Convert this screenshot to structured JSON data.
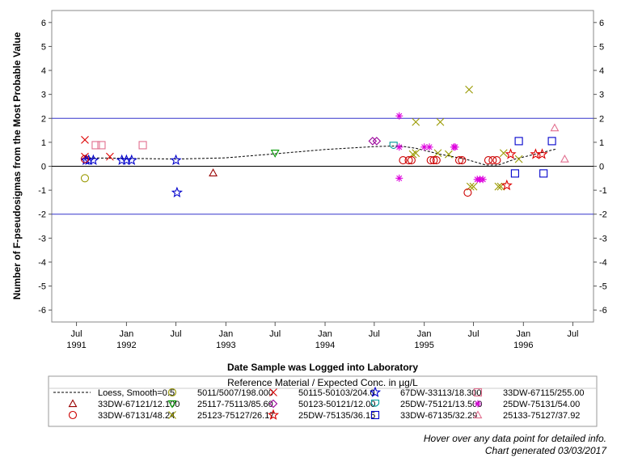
{
  "chart_data": {
    "type": "scatter",
    "ylabel": "Number of F-pseudosigmas from the Most Probable Value",
    "xlabel": "Date Sample was Logged into Laboratory",
    "ylim": [
      -6.5,
      6.5
    ],
    "y_ticks": [
      -6,
      -5,
      -4,
      -3,
      -2,
      -1,
      0,
      1,
      2,
      3,
      4,
      5,
      6
    ],
    "xlim": [
      "1991-04-01",
      "1996-09-15"
    ],
    "x_ticks": [
      {
        "date": "1991-07-01",
        "line1": "Jul",
        "line2": "1991"
      },
      {
        "date": "1992-01-01",
        "line1": "Jan",
        "line2": "1992"
      },
      {
        "date": "1992-07-01",
        "line1": "Jul",
        "line2": ""
      },
      {
        "date": "1993-01-01",
        "line1": "Jan",
        "line2": "1993"
      },
      {
        "date": "1993-07-01",
        "line1": "Jul",
        "line2": ""
      },
      {
        "date": "1994-01-01",
        "line1": "Jan",
        "line2": "1994"
      },
      {
        "date": "1994-07-01",
        "line1": "Jul",
        "line2": ""
      },
      {
        "date": "1995-01-01",
        "line1": "Jan",
        "line2": "1995"
      },
      {
        "date": "1995-07-01",
        "line1": "Jul",
        "line2": ""
      },
      {
        "date": "1996-01-01",
        "line1": "Jan",
        "line2": "1996"
      },
      {
        "date": "1996-07-01",
        "line1": "Jul",
        "line2": ""
      }
    ],
    "reference_lines": [
      {
        "y": 2,
        "color": "#3333cc"
      },
      {
        "y": 0,
        "color": "#000000"
      },
      {
        "y": -2,
        "color": "#3333cc"
      }
    ],
    "loess": {
      "name": "Loess, Smooth=0.5",
      "color": "#000000",
      "points": [
        [
          "1991-08-01",
          0.35
        ],
        [
          "1992-01-01",
          0.33
        ],
        [
          "1992-07-01",
          0.3
        ],
        [
          "1993-01-01",
          0.35
        ],
        [
          "1993-07-01",
          0.52
        ],
        [
          "1994-01-01",
          0.7
        ],
        [
          "1994-07-01",
          0.82
        ],
        [
          "1994-10-01",
          0.85
        ],
        [
          "1994-12-01",
          0.75
        ],
        [
          "1995-03-01",
          0.5
        ],
        [
          "1995-06-01",
          0.3
        ],
        [
          "1995-08-15",
          0.05
        ],
        [
          "1995-10-01",
          0.05
        ],
        [
          "1995-12-01",
          0.3
        ],
        [
          "1996-03-01",
          0.55
        ],
        [
          "1996-05-01",
          0.72
        ]
      ]
    },
    "series": [
      {
        "name": "5011/5007/198.000",
        "marker": "circle",
        "color": "#999900",
        "points": [
          [
            "1991-08-01",
            -0.5
          ]
        ]
      },
      {
        "name": "50115-50103/204.0",
        "marker": "x",
        "color": "#dd0000",
        "points": [
          [
            "1991-08-01",
            1.1
          ],
          [
            "1991-08-01",
            0.4
          ],
          [
            "1991-11-01",
            0.4
          ]
        ]
      },
      {
        "name": "67DW-33113/18.300",
        "marker": "star",
        "color": "#0000cc",
        "points": [
          [
            "1991-08-05",
            0.25
          ],
          [
            "1991-08-15",
            0.25
          ],
          [
            "1991-09-01",
            0.25
          ],
          [
            "1991-12-15",
            0.25
          ],
          [
            "1992-01-01",
            0.25
          ],
          [
            "1992-01-20",
            0.25
          ],
          [
            "1992-07-01",
            0.25
          ],
          [
            "1992-07-05",
            -1.1
          ]
        ]
      },
      {
        "name": "33DW-67115/255.00",
        "marker": "square",
        "color": "#e26f8f",
        "points": [
          [
            "1991-09-10",
            0.88
          ],
          [
            "1991-10-01",
            0.88
          ],
          [
            "1992-03-01",
            0.88
          ]
        ]
      },
      {
        "name": "33DW-67121/12.100",
        "marker": "triangle",
        "color": "#990000",
        "points": [
          [
            "1992-11-15",
            -0.28
          ]
        ]
      },
      {
        "name": "25117-75113/85.60",
        "marker": "triangle-down",
        "color": "#009900",
        "points": [
          [
            "1993-07-01",
            0.55
          ]
        ]
      },
      {
        "name": "25123-75127/26.17",
        "marker": "x",
        "color": "#999900",
        "points": [
          [
            "1994-11-20",
            0.5
          ],
          [
            "1994-12-01",
            0.55
          ],
          [
            "1994-12-01",
            1.85
          ],
          [
            "1995-02-20",
            0.55
          ],
          [
            "1995-03-01",
            1.85
          ],
          [
            "1995-04-01",
            0.5
          ],
          [
            "1995-06-15",
            3.2
          ],
          [
            "1995-06-20",
            -0.85
          ],
          [
            "1995-07-01",
            -0.85
          ],
          [
            "1995-10-01",
            -0.85
          ],
          [
            "1995-10-10",
            -0.85
          ],
          [
            "1995-10-20",
            0.55
          ],
          [
            "1995-12-15",
            0.3
          ]
        ]
      },
      {
        "name": "50123-50121/12.00",
        "marker": "diamond",
        "color": "#990099",
        "points": [
          [
            "1994-06-25",
            1.05
          ],
          [
            "1994-07-10",
            1.05
          ]
        ]
      },
      {
        "name": "25DW-75121/13.500",
        "marker": "shield",
        "color": "#009999",
        "points": [
          [
            "1994-09-10",
            0.85
          ]
        ]
      },
      {
        "name": "25DW-75131/54.00",
        "marker": "asterisk",
        "color": "#dd00dd",
        "points": [
          [
            "1994-10-01",
            2.1
          ],
          [
            "1994-10-01",
            0.8
          ],
          [
            "1994-10-01",
            -0.5
          ],
          [
            "1995-01-01",
            0.8
          ],
          [
            "1995-01-20",
            0.8
          ],
          [
            "1995-04-20",
            0.8
          ],
          [
            "1995-04-25",
            0.8
          ],
          [
            "1995-07-15",
            -0.55
          ],
          [
            "1995-07-25",
            -0.55
          ],
          [
            "1995-08-05",
            -0.55
          ]
        ]
      },
      {
        "name": "33DW-67131/48.24",
        "marker": "circle",
        "color": "#cc0000",
        "points": [
          [
            "1991-08-01",
            0.3
          ],
          [
            "1994-10-15",
            0.25
          ],
          [
            "1994-11-05",
            0.25
          ],
          [
            "1994-11-15",
            0.25
          ],
          [
            "1995-01-25",
            0.25
          ],
          [
            "1995-02-05",
            0.25
          ],
          [
            "1995-02-15",
            0.25
          ],
          [
            "1995-05-10",
            0.25
          ],
          [
            "1995-05-20",
            0.25
          ],
          [
            "1995-06-10",
            -1.1
          ],
          [
            "1995-08-25",
            0.25
          ],
          [
            "1995-09-10",
            0.25
          ],
          [
            "1995-09-25",
            0.25
          ]
        ]
      },
      {
        "name": "25DW-75135/36.15",
        "marker": "star",
        "color": "#dd0000",
        "points": [
          [
            "1995-11-01",
            -0.8
          ],
          [
            "1995-11-15",
            0.5
          ],
          [
            "1996-02-15",
            0.5
          ],
          [
            "1996-03-10",
            0.5
          ]
        ]
      },
      {
        "name": "33DW-67135/32.29",
        "marker": "square",
        "color": "#0000cc",
        "points": [
          [
            "1995-12-01",
            -0.3
          ],
          [
            "1995-12-15",
            1.05
          ],
          [
            "1996-03-15",
            -0.3
          ],
          [
            "1996-04-15",
            1.05
          ]
        ]
      },
      {
        "name": "25133-75127/37.92",
        "marker": "triangle",
        "color": "#e26f8f",
        "points": [
          [
            "1996-04-25",
            1.6
          ],
          [
            "1996-06-01",
            0.3
          ]
        ]
      }
    ],
    "legend": {
      "title": "Reference Material / Expected Conc. in µg/L",
      "placement": "bottom",
      "rows": [
        [
          "Loess, Smooth=0.5",
          "5011/5007/198.000",
          "50115-50103/204.0",
          "67DW-33113/18.300",
          "33DW-67115/255.00"
        ],
        [
          "33DW-67121/12.100",
          "25117-75113/85.60",
          "50123-50121/12.00",
          "25DW-75121/13.500",
          "25DW-75131/54.00"
        ],
        [
          "33DW-67131/48.24",
          "25123-75127/26.17",
          "25DW-75135/36.15",
          "33DW-67135/32.29",
          "25133-75127/37.92"
        ]
      ]
    },
    "grid": false
  },
  "footer": {
    "hover_note": "Hover over any data point for detailed info.",
    "generated": "Chart generated 03/03/2017"
  }
}
